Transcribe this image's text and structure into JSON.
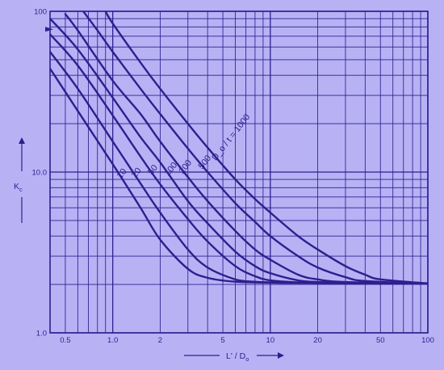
{
  "chart_data": {
    "type": "line",
    "x_scale": "log",
    "y_scale": "log",
    "xlim": [
      0.4,
      100
    ],
    "ylim": [
      1,
      100
    ],
    "grid": true,
    "xlabel": "L' / D",
    "xlabel_sub": "o",
    "ylabel": "K",
    "ylabel_sub": "c",
    "x_ticks": [
      {
        "v": 0.5,
        "label": "0.5"
      },
      {
        "v": 1,
        "label": "1.0"
      },
      {
        "v": 2,
        "label": "2"
      },
      {
        "v": 5,
        "label": "5"
      },
      {
        "v": 10,
        "label": "10"
      },
      {
        "v": 20,
        "label": "20"
      },
      {
        "v": 50,
        "label": "50"
      },
      {
        "v": 100,
        "label": "100"
      }
    ],
    "y_ticks": [
      {
        "v": 1,
        "label": "1.0"
      },
      {
        "v": 10,
        "label": "10.0"
      },
      {
        "v": 100,
        "label": "100"
      }
    ],
    "series": [
      {
        "name": "10",
        "label": "10",
        "x": [
          0.4,
          0.6,
          1.0,
          1.5,
          2.0,
          3.0,
          4.0,
          6.0,
          10.0,
          20.0,
          100.0
        ],
        "y": [
          44,
          24,
          11.2,
          6.0,
          3.8,
          2.5,
          2.2,
          2.08,
          2.05,
          2.04,
          2.02
        ]
      },
      {
        "name": "20",
        "label": "20",
        "x": [
          0.4,
          0.6,
          1.0,
          1.5,
          2.0,
          3.0,
          4.0,
          6.0,
          8.0,
          10.0,
          20.0,
          100.0
        ],
        "y": [
          56,
          33,
          15.5,
          8.5,
          5.6,
          3.3,
          2.55,
          2.15,
          2.08,
          2.06,
          2.04,
          2.02
        ]
      },
      {
        "name": "50",
        "label": "50",
        "x": [
          0.4,
          0.6,
          1.0,
          1.5,
          2.0,
          3.0,
          4.0,
          6.0,
          8.0,
          10.0,
          15.0,
          20.0,
          100.0
        ],
        "y": [
          72,
          46,
          22.5,
          12.5,
          8.4,
          5.1,
          3.7,
          2.6,
          2.25,
          2.12,
          2.06,
          2.05,
          2.02
        ]
      },
      {
        "name": "100",
        "label": "100",
        "x": [
          0.4,
          0.6,
          1.0,
          1.5,
          2.0,
          3.0,
          4.0,
          6.0,
          8.0,
          10.0,
          15.0,
          20.0,
          30.0,
          100.0
        ],
        "y": [
          90,
          58,
          29,
          16.5,
          11.5,
          6.6,
          4.8,
          3.2,
          2.6,
          2.35,
          2.12,
          2.07,
          2.05,
          2.02
        ]
      },
      {
        "name": "200",
        "label": "200",
        "x": [
          0.5,
          0.6,
          1.0,
          1.5,
          2.0,
          3.0,
          4.0,
          6.0,
          8.0,
          10.0,
          15.0,
          20.0,
          30.0,
          100.0
        ],
        "y": [
          96,
          76,
          37,
          23,
          15.5,
          9.3,
          6.6,
          4.3,
          3.3,
          2.85,
          2.3,
          2.15,
          2.07,
          2.02
        ]
      },
      {
        "name": "500",
        "label": "500",
        "x": [
          0.65,
          0.8,
          1.0,
          1.5,
          2.0,
          3.0,
          4.0,
          6.0,
          8.0,
          10.0,
          15.0,
          20.0,
          30.0,
          40.0,
          100.0
        ],
        "y": [
          100,
          76,
          56,
          33,
          23,
          14,
          10,
          6.4,
          4.9,
          4.0,
          3.0,
          2.55,
          2.22,
          2.1,
          2.02
        ]
      },
      {
        "name": "1000",
        "label": "D_o / t = 1000",
        "x": [
          0.9,
          1.0,
          1.5,
          2.0,
          3.0,
          4.0,
          6.0,
          8.0,
          10.0,
          15.0,
          20.0,
          30.0,
          40.0,
          50.0,
          100.0
        ],
        "y": [
          100,
          84,
          48,
          33,
          20,
          14.2,
          9.0,
          6.8,
          5.6,
          4.0,
          3.3,
          2.6,
          2.3,
          2.15,
          2.03
        ]
      }
    ]
  }
}
